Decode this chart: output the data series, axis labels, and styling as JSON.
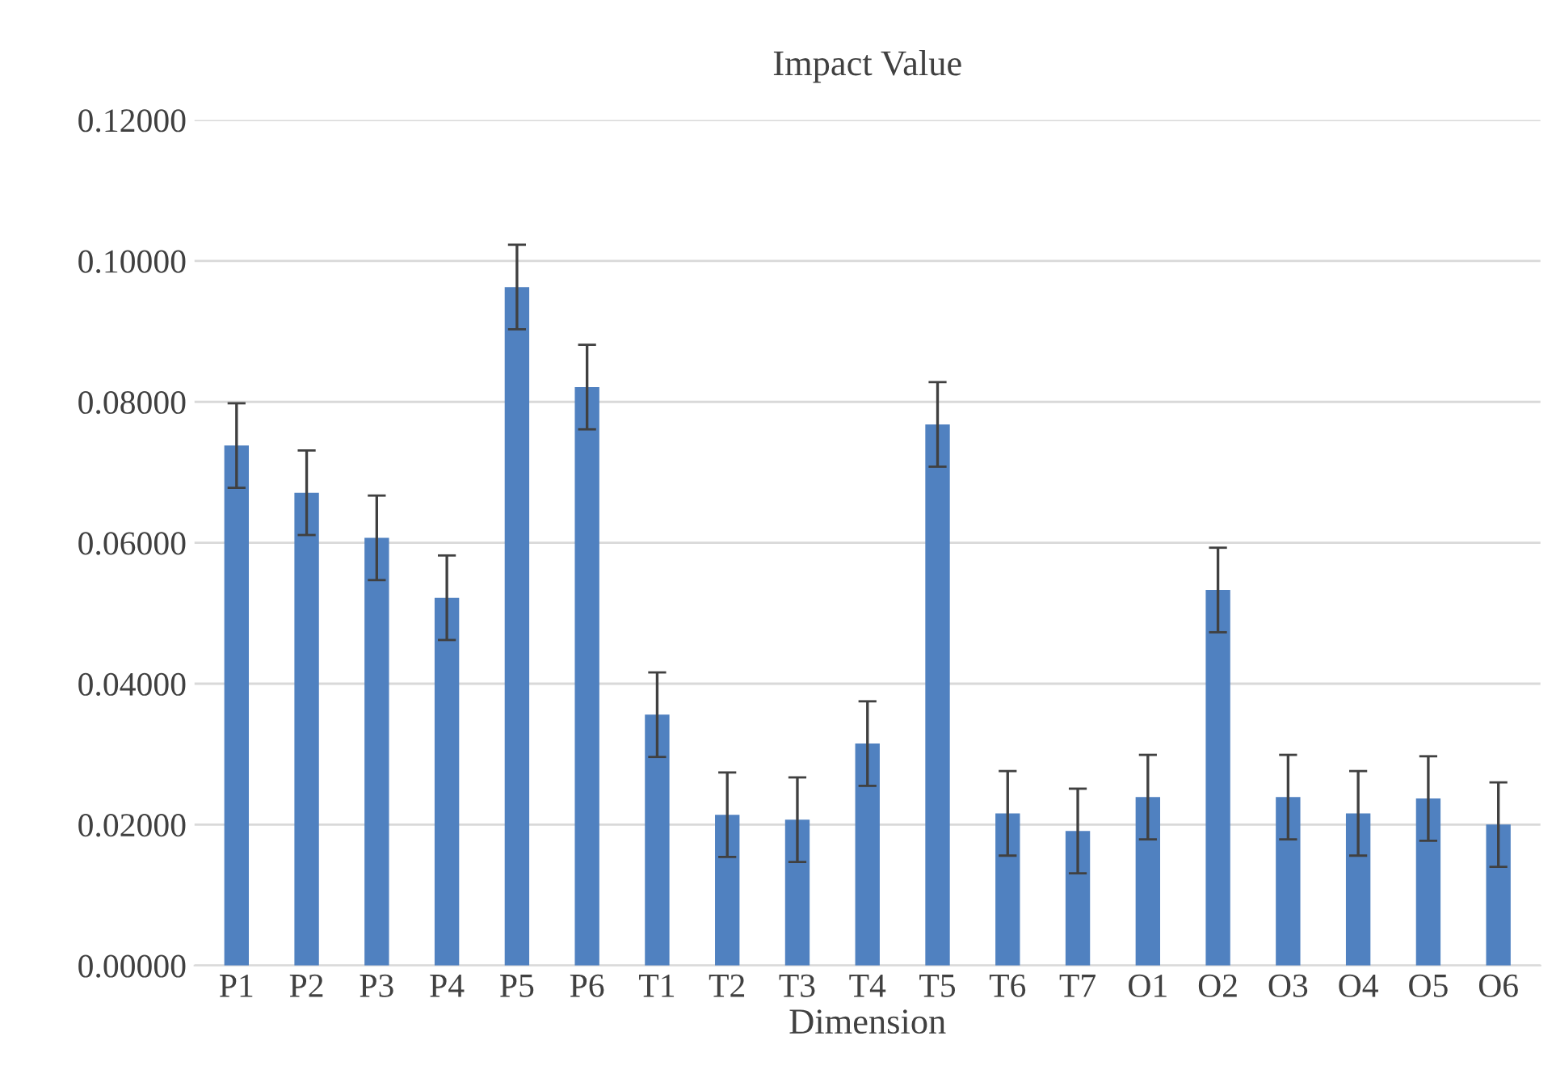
{
  "chart_data": {
    "type": "bar",
    "title": "Impact Value",
    "xlabel": "Dimension",
    "categories": [
      "P1",
      "P2",
      "P3",
      "P4",
      "P5",
      "P6",
      "T1",
      "T2",
      "T3",
      "T4",
      "T5",
      "T6",
      "T7",
      "O1",
      "O2",
      "O3",
      "O4",
      "O5",
      "O6"
    ],
    "values": [
      0.0738,
      0.0671,
      0.0607,
      0.0522,
      0.0963,
      0.0821,
      0.0356,
      0.0214,
      0.0207,
      0.0315,
      0.0768,
      0.0216,
      0.0191,
      0.0239,
      0.0533,
      0.0239,
      0.0216,
      0.0237,
      0.02
    ],
    "errors": [
      0.006,
      0.006,
      0.006,
      0.006,
      0.006,
      0.006,
      0.006,
      0.006,
      0.006,
      0.006,
      0.006,
      0.006,
      0.006,
      0.006,
      0.006,
      0.006,
      0.006,
      0.006,
      0.006
    ],
    "color": "#5081c0",
    "ylim": [
      0,
      0.12
    ],
    "yticks": [
      {
        "value": 0,
        "label": "0.00000"
      },
      {
        "value": 0.02,
        "label": "0.02000"
      },
      {
        "value": 0.04,
        "label": "0.04000"
      },
      {
        "value": 0.06,
        "label": "0.06000"
      },
      {
        "value": 0.08,
        "label": "0.08000"
      },
      {
        "value": 0.1,
        "label": "0.10000"
      },
      {
        "value": 0.12,
        "label": "0.12000"
      }
    ],
    "grid": "y"
  }
}
